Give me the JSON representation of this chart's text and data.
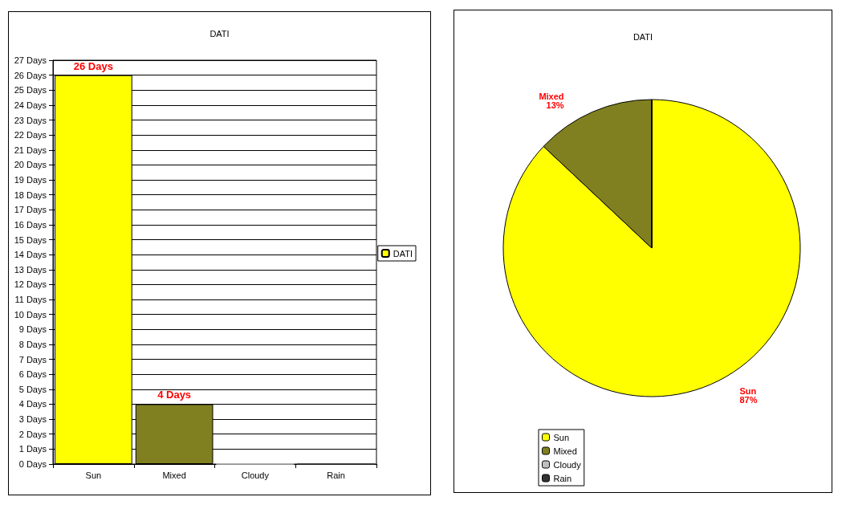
{
  "chart_data": [
    {
      "type": "bar",
      "title": "DATI",
      "categories": [
        "Sun",
        "Mixed",
        "Cloudy",
        "Rain"
      ],
      "series": [
        {
          "name": "DATI",
          "color": "#ffff00",
          "colors": [
            "#ffff00",
            "#808020",
            "#c0c0c0",
            "#333333"
          ],
          "values": [
            26,
            4,
            0,
            0
          ],
          "value_labels": [
            "26 Days",
            "4 Days",
            null,
            null
          ]
        }
      ],
      "ylim": [
        0,
        27
      ],
      "yticks": [
        {
          "value": 0,
          "label": "0 Days"
        },
        {
          "value": 1,
          "label": "1 Days"
        },
        {
          "value": 2,
          "label": "2 Days"
        },
        {
          "value": 3,
          "label": "3 Days"
        },
        {
          "value": 4,
          "label": "4 Days"
        },
        {
          "value": 5,
          "label": "5 Days"
        },
        {
          "value": 6,
          "label": "6 Days"
        },
        {
          "value": 7,
          "label": "7 Days"
        },
        {
          "value": 8,
          "label": "8 Days"
        },
        {
          "value": 9,
          "label": "9 Days"
        },
        {
          "value": 10,
          "label": "10 Days"
        },
        {
          "value": 11,
          "label": "11 Days"
        },
        {
          "value": 12,
          "label": "12 Days"
        },
        {
          "value": 13,
          "label": "13 Days"
        },
        {
          "value": 14,
          "label": "14 Days"
        },
        {
          "value": 15,
          "label": "15 Days"
        },
        {
          "value": 16,
          "label": "16 Days"
        },
        {
          "value": 17,
          "label": "17 Days"
        },
        {
          "value": 18,
          "label": "18 Days"
        },
        {
          "value": 19,
          "label": "19 Days"
        },
        {
          "value": 20,
          "label": "20 Days"
        },
        {
          "value": 21,
          "label": "21 Days"
        },
        {
          "value": 22,
          "label": "22 Days"
        },
        {
          "value": 23,
          "label": "23 Days"
        },
        {
          "value": 24,
          "label": "24 Days"
        },
        {
          "value": 25,
          "label": "25 Days"
        },
        {
          "value": 26,
          "label": "26 Days"
        },
        {
          "value": 27,
          "label": "27 Days"
        }
      ],
      "grid": "y",
      "legend": "right"
    },
    {
      "type": "pie",
      "title": "DATI",
      "categories": [
        "Sun",
        "Mixed",
        "Cloudy",
        "Rain"
      ],
      "values": [
        87,
        13,
        0,
        0
      ],
      "colors": [
        "#ffff00",
        "#808020",
        "#c0c0c0",
        "#333333"
      ],
      "value_labels": [
        "87%",
        "13%",
        null,
        null
      ],
      "legend": "bottom left"
    }
  ]
}
